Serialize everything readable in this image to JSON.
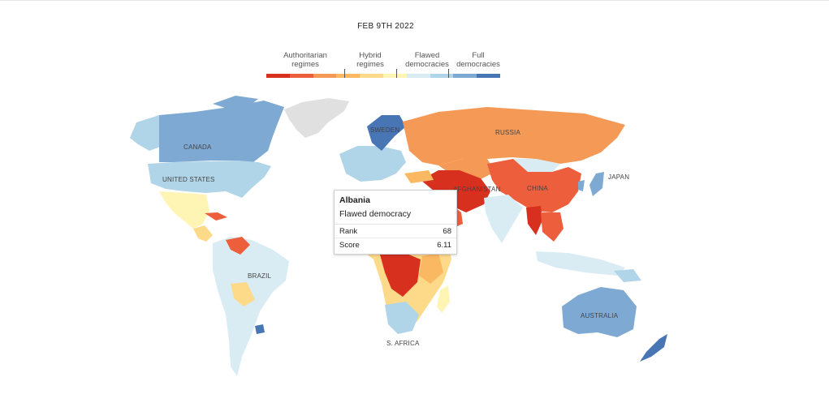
{
  "map": {
    "date": "FEB 9TH 2022",
    "legend": {
      "categories": [
        {
          "label": "Authoritarian regimes"
        },
        {
          "label": "Hybrid regimes"
        },
        {
          "label": "Flawed democracies"
        },
        {
          "label": "Full democracies"
        }
      ],
      "colors": [
        "#d7301f",
        "#ec5e3c",
        "#f59a56",
        "#fbb862",
        "#fdd98a",
        "#fef5b5",
        "#d9ecf3",
        "#b1d5e8",
        "#7ea9d3",
        "#4875b4"
      ]
    },
    "country_labels": {
      "canada": "CANADA",
      "united_states": "UNITED STATES",
      "brazil": "BRAZIL",
      "russia": "RUSSIA",
      "china": "CHINA",
      "japan": "JAPAN",
      "afghanistan": "AFGHANISTAN",
      "australia": "AUSTRALIA",
      "s_africa": "S. AFRICA",
      "sweden": "SWEDEN"
    },
    "tooltip": {
      "country": "Albania",
      "category": "Flawed democracy",
      "rank_label": "Rank",
      "rank": "68",
      "score_label": "Score",
      "score": "6.11"
    }
  }
}
